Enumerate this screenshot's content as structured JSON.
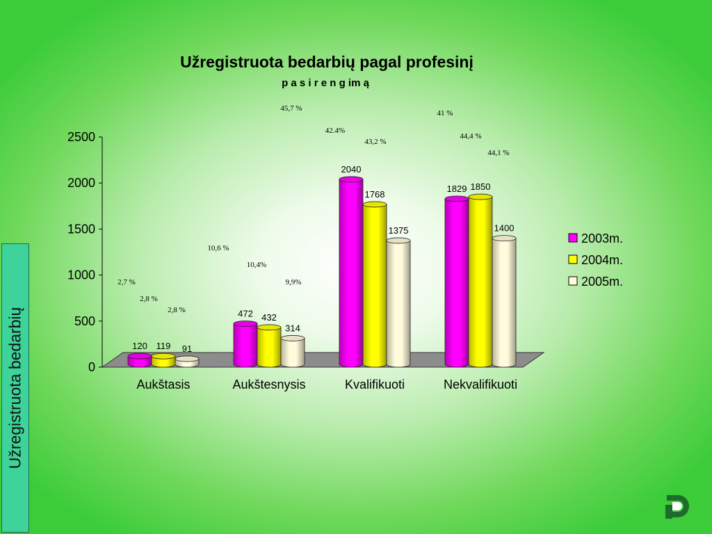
{
  "side_label": "Užregistruota bedarbių",
  "colors": {
    "series": [
      "#ff00ff",
      "#ffff00",
      "#fffbdc"
    ],
    "background_edge": "#3ccc3a",
    "side_label_bg": "#3ed39a",
    "floor": "#8c8c8c",
    "logo": "#1f6b2b"
  },
  "logo_icon": "stylized-d-logo-icon",
  "chart_data": {
    "type": "bar",
    "title": "Užregistruota bedarbių pagal profesinį",
    "subtitle": "p a s i r e n g im ą",
    "categories": [
      "Aukštasis",
      "Aukštesnysis",
      "Kvalifikuoti",
      "Nekvalifikuoti"
    ],
    "series": [
      {
        "name": "2003m.",
        "values": [
          120,
          472,
          2040,
          1829
        ],
        "percent_labels": [
          "2,7 %",
          "10,6 %",
          "45,7 %",
          "41 %"
        ]
      },
      {
        "name": "2004m.",
        "values": [
          119,
          432,
          1768,
          1850
        ],
        "percent_labels": [
          "2,8 %",
          "10,4%",
          "42.4%",
          "44,4 %"
        ]
      },
      {
        "name": "2005m.",
        "values": [
          91,
          314,
          1375,
          1400
        ],
        "percent_labels": [
          "2,8 %",
          "9,9%",
          "43,2 %",
          "44,1 %"
        ]
      }
    ],
    "yticks": [
      "0",
      "500",
      "1000",
      "1500",
      "2000",
      "2500"
    ],
    "ylim": [
      0,
      2500
    ],
    "legend_position": "right",
    "grid": false,
    "style": "3d cylinders"
  }
}
